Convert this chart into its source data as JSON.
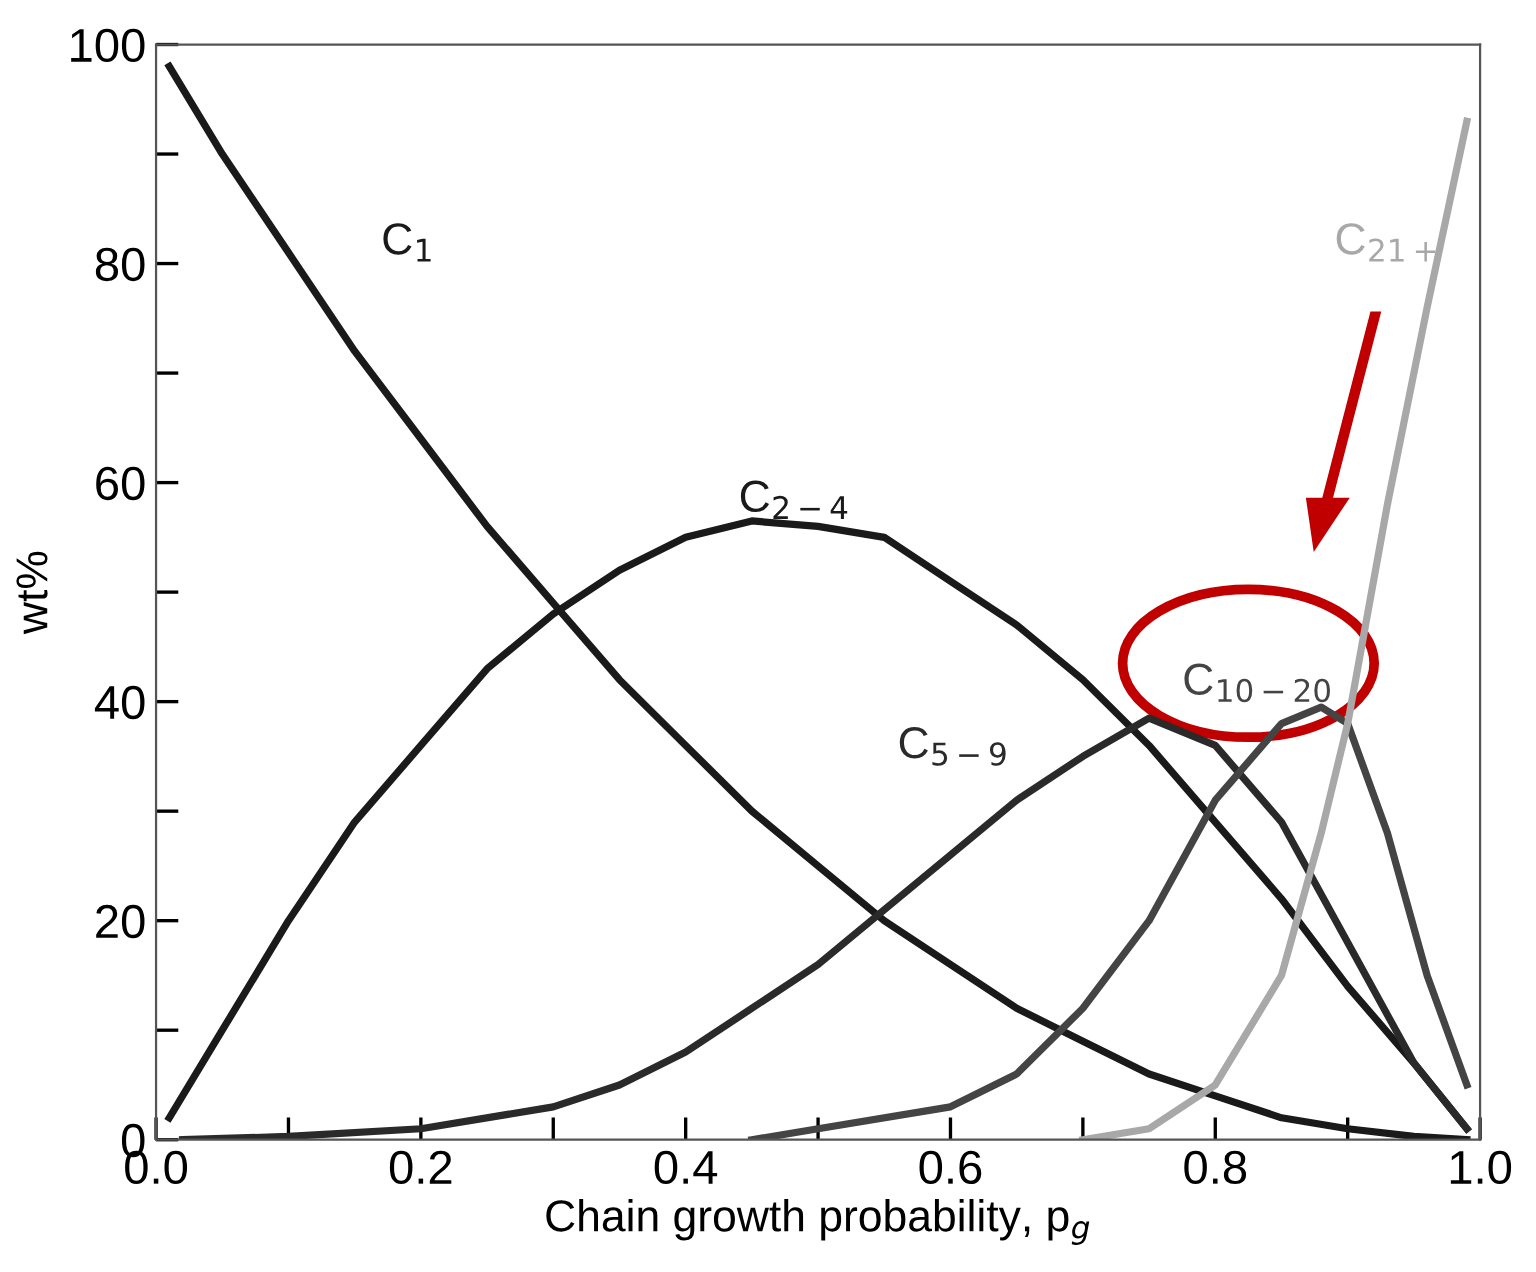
{
  "chart_data": {
    "type": "line",
    "xlabel": "Chain growth probability, p$_{g}$",
    "ylabel": "wt%",
    "xlim": [
      0,
      1
    ],
    "ylim": [
      0,
      100
    ],
    "xticks": [
      {
        "value": 0,
        "label": "0.0"
      },
      {
        "value": 0.1,
        "label": null
      },
      {
        "value": 0.2,
        "label": "0.2"
      },
      {
        "value": 0.3,
        "label": null
      },
      {
        "value": 0.4,
        "label": "0.4"
      },
      {
        "value": 0.5,
        "label": null
      },
      {
        "value": 0.6,
        "label": "0.6"
      },
      {
        "value": 0.7,
        "label": null
      },
      {
        "value": 0.8,
        "label": "0.8"
      },
      {
        "value": 0.9,
        "label": null
      },
      {
        "value": 1,
        "label": "1.0"
      }
    ],
    "yticks": [
      0,
      {
        "value": 10,
        "label": null
      },
      20,
      {
        "value": 30,
        "label": null
      },
      40,
      {
        "value": 50,
        "label": null
      },
      60,
      {
        "value": 70,
        "label": null
      },
      80,
      {
        "value": 90,
        "label": null
      },
      100
    ],
    "grid": false,
    "legend": false,
    "marker": "none",
    "line_style": "solid",
    "series": [
      {
        "name": "C$_{1}$",
        "color": "#1a1a1a",
        "x": [
          0.01,
          0.05,
          0.1,
          0.15,
          0.2,
          0.25,
          0.3,
          0.35,
          0.4,
          0.45,
          0.5,
          0.55,
          0.6,
          0.65,
          0.7,
          0.75,
          0.8,
          0.85,
          0.9,
          0.95,
          0.99
        ],
        "values": [
          98,
          90,
          81,
          72,
          64,
          56,
          49,
          42,
          36,
          30,
          25,
          20,
          16,
          12,
          9,
          6,
          4,
          2,
          1,
          0.3,
          0
        ]
      },
      {
        "name": "C$_{2−4}$",
        "color": "#1a1a1a",
        "x": [
          0.01,
          0.05,
          0.1,
          0.15,
          0.2,
          0.25,
          0.3,
          0.35,
          0.4,
          0.45,
          0.5,
          0.55,
          0.6,
          0.65,
          0.7,
          0.75,
          0.8,
          0.85,
          0.9,
          0.95,
          0.99
        ],
        "values": [
          2,
          10,
          20,
          29,
          36,
          43,
          48,
          52,
          55,
          56.5,
          56,
          55,
          51,
          47,
          42,
          36,
          29,
          22,
          14,
          7,
          1
        ]
      },
      {
        "name": "C$_{5−9}$",
        "color": "#2a2a2a",
        "x": [
          0.02,
          0.1,
          0.2,
          0.3,
          0.35,
          0.4,
          0.45,
          0.5,
          0.55,
          0.6,
          0.65,
          0.7,
          0.75,
          0.8,
          0.85,
          0.9,
          0.95,
          0.99
        ],
        "values": [
          0,
          0.3,
          1,
          3,
          5,
          8,
          12,
          16,
          21,
          26,
          31,
          35,
          38.5,
          36,
          29,
          18,
          7,
          1
        ]
      },
      {
        "name": "C$_{10−20}$",
        "color": "#444444",
        "x": [
          0.45,
          0.5,
          0.6,
          0.65,
          0.7,
          0.75,
          0.8,
          0.85,
          0.88,
          0.9,
          0.93,
          0.96,
          0.99
        ],
        "values": [
          0,
          1,
          3,
          6,
          12,
          20,
          31,
          38,
          39.5,
          38,
          28,
          15,
          5
        ]
      },
      {
        "name": "C$_{21+}$",
        "color": "#a8a8a8",
        "x": [
          0.7,
          0.75,
          0.8,
          0.85,
          0.88,
          0.9,
          0.93,
          0.96,
          0.99
        ],
        "values": [
          0,
          1,
          5,
          15,
          28,
          38,
          58,
          76,
          93
        ]
      }
    ]
  }
}
